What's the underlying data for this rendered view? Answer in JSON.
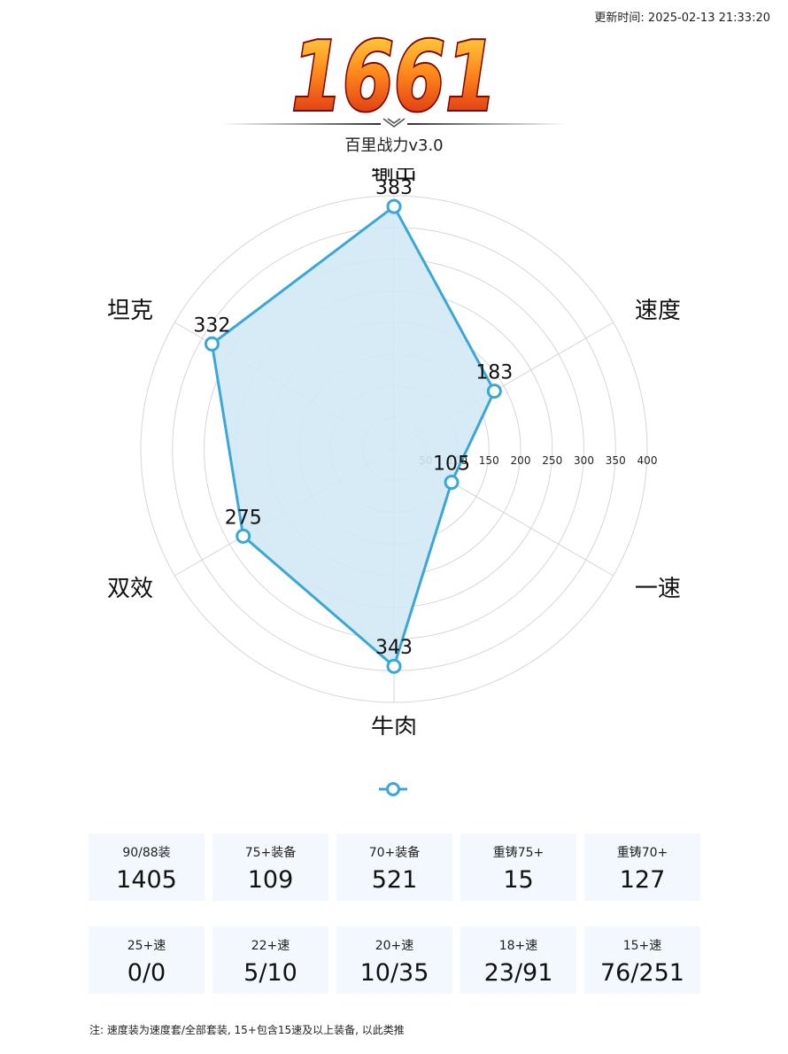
{
  "header": {
    "update_time": "更新时间: 2025-02-13 21:33:20",
    "score": "1661",
    "subtitle": "百里战力v3.0"
  },
  "chart_data": {
    "type": "radar",
    "categories": [
      "速度",
      "一速",
      "牛肉",
      "双效",
      "坦克",
      "输出"
    ],
    "series": [
      {
        "values": [
          183,
          105,
          343,
          275,
          332,
          383
        ]
      }
    ],
    "rlim": [
      0,
      400
    ],
    "rticks": [
      50,
      100,
      150,
      200,
      250,
      300,
      350,
      400
    ],
    "grid": true,
    "colors": {
      "line": "#3aa7d4",
      "fill": "#d3e9f6",
      "grid": "#d6d6d6"
    }
  },
  "stats_row1": [
    {
      "label": "90/88装",
      "value": "1405"
    },
    {
      "label": "75+装备",
      "value": "109"
    },
    {
      "label": "70+装备",
      "value": "521"
    },
    {
      "label": "重铸75+",
      "value": "15"
    },
    {
      "label": "重铸70+",
      "value": "127"
    }
  ],
  "stats_row2": [
    {
      "label": "25+速",
      "value": "0/0"
    },
    {
      "label": "22+速",
      "value": "5/10"
    },
    {
      "label": "20+速",
      "value": "10/35"
    },
    {
      "label": "18+速",
      "value": "23/91"
    },
    {
      "label": "15+速",
      "value": "76/251"
    }
  ],
  "footnote": "注: 速度装为速度套/全部套装, 15+包含15速及以上装备, 以此类推"
}
